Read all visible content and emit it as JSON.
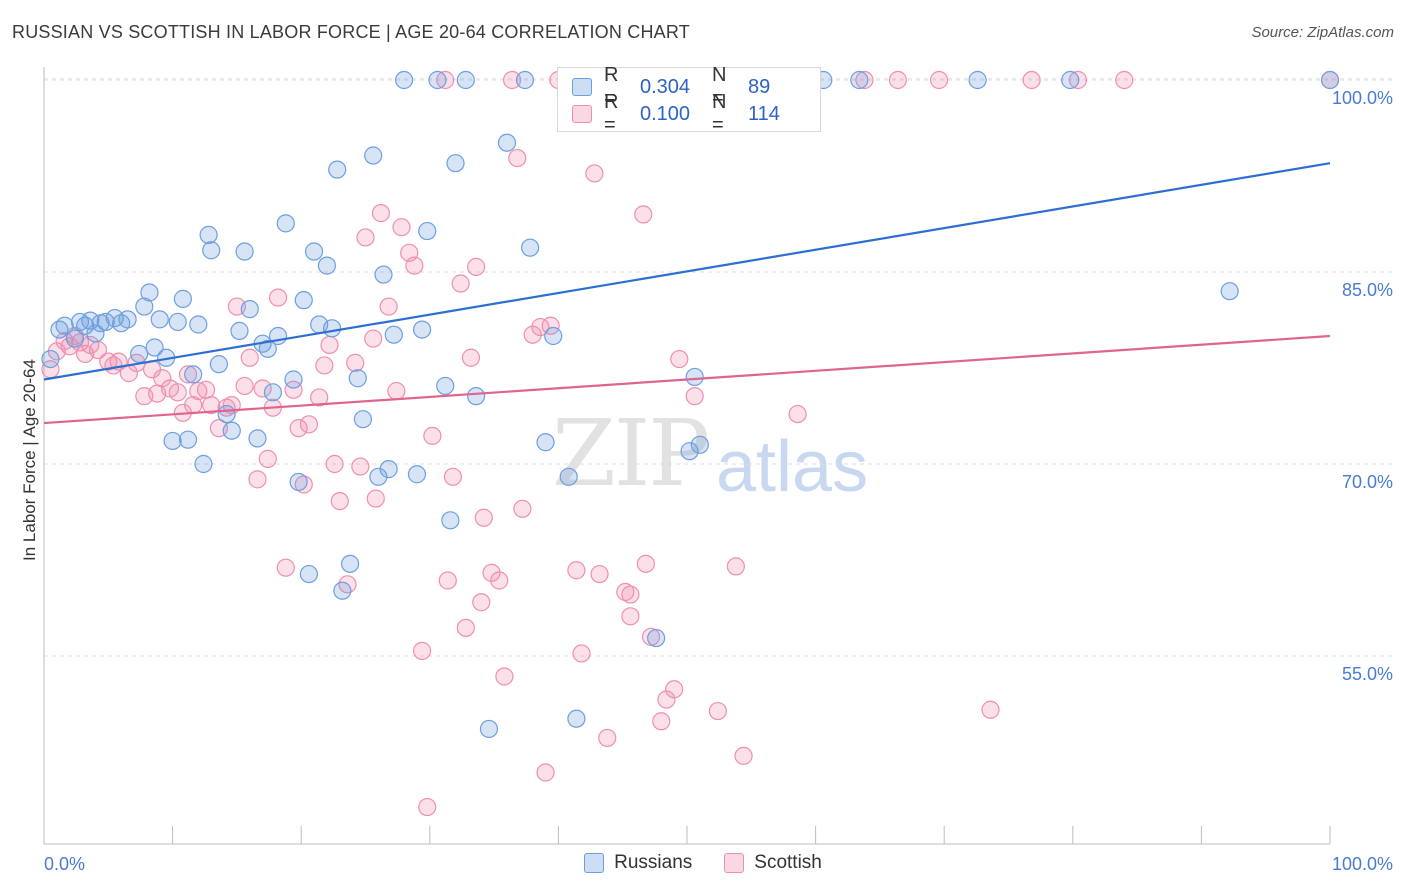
{
  "title": "RUSSIAN VS SCOTTISH IN LABOR FORCE | AGE 20-64 CORRELATION CHART",
  "source": "Source: ZipAtlas.com",
  "watermark": {
    "zip": "ZIP",
    "atlas": "atlas"
  },
  "colors": {
    "russians": "#6d9fe0",
    "scottish": "#ef8fb0",
    "russians_line": "#2c6fd1",
    "scottish_line": "#e0648f",
    "tick_text": "#4a7bd0"
  },
  "legend_top": {
    "rows": [
      {
        "r_label": "R =",
        "r_value": "0.304",
        "n_label": "N =",
        "n_value": "89"
      },
      {
        "r_label": "R =",
        "r_value": "0.100",
        "n_label": "N =",
        "n_value": "114"
      }
    ]
  },
  "legend_bottom": {
    "items": [
      "Russians",
      "Scottish"
    ]
  },
  "chart_data": {
    "type": "scatter",
    "title": "RUSSIAN VS SCOTTISH IN LABOR FORCE | AGE 20-64 CORRELATION CHART",
    "xlabel": "",
    "ylabel": "In Labor Force | Age 20-64",
    "xlim": [
      0,
      100
    ],
    "ylim": [
      40,
      102
    ],
    "x_tick_labels": [
      "0.0%",
      "100.0%"
    ],
    "y_ticks": [
      55,
      70,
      85,
      100
    ],
    "y_tick_labels": [
      "55.0%",
      "70.0%",
      "85.0%",
      "100.0%"
    ],
    "grid": true,
    "legend_position": "bottom",
    "series": [
      {
        "name": "Russians",
        "r": 0.304,
        "n": 89,
        "trend": {
          "x": [
            0,
            100
          ],
          "y": [
            76.6,
            93.5
          ]
        },
        "points": [
          [
            0.5,
            78.2
          ],
          [
            1.2,
            80.5
          ],
          [
            1.6,
            80.8
          ],
          [
            2.4,
            79.8
          ],
          [
            2.8,
            81.1
          ],
          [
            3.2,
            80.8
          ],
          [
            3.6,
            81.2
          ],
          [
            4.0,
            80.2
          ],
          [
            4.4,
            81.0
          ],
          [
            4.8,
            81.1
          ],
          [
            5.5,
            81.4
          ],
          [
            6.0,
            81.0
          ],
          [
            6.5,
            81.3
          ],
          [
            7.4,
            78.6
          ],
          [
            7.8,
            82.3
          ],
          [
            8.2,
            83.4
          ],
          [
            8.6,
            79.1
          ],
          [
            9.0,
            81.3
          ],
          [
            9.5,
            78.3
          ],
          [
            10.0,
            71.8
          ],
          [
            10.4,
            81.1
          ],
          [
            10.8,
            82.9
          ],
          [
            11.2,
            71.9
          ],
          [
            11.6,
            77.0
          ],
          [
            12.0,
            80.9
          ],
          [
            12.4,
            70.0
          ],
          [
            12.8,
            87.9
          ],
          [
            13.0,
            86.7
          ],
          [
            13.6,
            77.8
          ],
          [
            14.2,
            73.9
          ],
          [
            14.6,
            72.6
          ],
          [
            15.2,
            80.4
          ],
          [
            15.6,
            86.6
          ],
          [
            16.0,
            82.1
          ],
          [
            16.6,
            72.0
          ],
          [
            17.0,
            79.4
          ],
          [
            17.4,
            79.0
          ],
          [
            17.8,
            75.6
          ],
          [
            18.2,
            80.0
          ],
          [
            18.8,
            88.8
          ],
          [
            19.4,
            76.6
          ],
          [
            19.8,
            68.6
          ],
          [
            20.2,
            82.8
          ],
          [
            20.6,
            61.4
          ],
          [
            21.0,
            86.6
          ],
          [
            21.4,
            80.9
          ],
          [
            22.0,
            85.5
          ],
          [
            22.4,
            80.6
          ],
          [
            22.8,
            93.0
          ],
          [
            23.2,
            60.1
          ],
          [
            23.8,
            62.2
          ],
          [
            24.4,
            76.7
          ],
          [
            24.8,
            73.5
          ],
          [
            25.6,
            94.1
          ],
          [
            26.0,
            69.0
          ],
          [
            26.4,
            84.8
          ],
          [
            26.8,
            69.6
          ],
          [
            27.2,
            80.1
          ],
          [
            28.0,
            100.0
          ],
          [
            29.0,
            69.2
          ],
          [
            29.4,
            80.5
          ],
          [
            29.8,
            88.2
          ],
          [
            30.6,
            100.0
          ],
          [
            31.2,
            76.1
          ],
          [
            31.6,
            65.6
          ],
          [
            32.0,
            93.5
          ],
          [
            32.8,
            100.0
          ],
          [
            33.6,
            75.3
          ],
          [
            34.6,
            49.3
          ],
          [
            36.0,
            95.1
          ],
          [
            37.4,
            100.0
          ],
          [
            37.8,
            86.9
          ],
          [
            39.0,
            71.7
          ],
          [
            39.6,
            80.0
          ],
          [
            40.8,
            69.0
          ],
          [
            41.4,
            50.1
          ],
          [
            43.0,
            100.0
          ],
          [
            47.6,
            56.4
          ],
          [
            50.2,
            71.0
          ],
          [
            50.6,
            76.8
          ],
          [
            51.0,
            71.5
          ],
          [
            55.2,
            100.0
          ],
          [
            59.2,
            100.0
          ],
          [
            60.6,
            100.0
          ],
          [
            63.4,
            100.0
          ],
          [
            72.6,
            100.0
          ],
          [
            79.8,
            100.0
          ],
          [
            92.2,
            83.5
          ],
          [
            100.0,
            100.0
          ]
        ]
      },
      {
        "name": "Scottish",
        "r": 0.1,
        "n": 114,
        "trend": {
          "x": [
            0,
            100
          ],
          "y": [
            73.2,
            80.0
          ]
        },
        "points": [
          [
            0.5,
            77.4
          ],
          [
            1.0,
            78.8
          ],
          [
            1.6,
            79.6
          ],
          [
            2.0,
            79.2
          ],
          [
            2.4,
            80.0
          ],
          [
            2.8,
            79.5
          ],
          [
            3.2,
            78.6
          ],
          [
            3.6,
            79.3
          ],
          [
            4.2,
            78.9
          ],
          [
            5.0,
            78.0
          ],
          [
            5.4,
            77.7
          ],
          [
            5.8,
            78.0
          ],
          [
            6.6,
            77.1
          ],
          [
            7.2,
            77.9
          ],
          [
            7.8,
            75.3
          ],
          [
            8.4,
            77.4
          ],
          [
            8.8,
            75.5
          ],
          [
            9.2,
            76.7
          ],
          [
            9.8,
            75.9
          ],
          [
            10.4,
            75.6
          ],
          [
            10.8,
            74.0
          ],
          [
            11.2,
            77.0
          ],
          [
            11.6,
            74.6
          ],
          [
            12.0,
            75.7
          ],
          [
            12.6,
            75.8
          ],
          [
            13.0,
            74.6
          ],
          [
            13.6,
            72.8
          ],
          [
            14.2,
            74.4
          ],
          [
            14.6,
            74.6
          ],
          [
            15.0,
            82.3
          ],
          [
            15.6,
            76.1
          ],
          [
            16.0,
            78.3
          ],
          [
            16.6,
            68.8
          ],
          [
            17.0,
            75.9
          ],
          [
            17.4,
            70.4
          ],
          [
            17.8,
            74.4
          ],
          [
            18.2,
            83.0
          ],
          [
            18.8,
            61.9
          ],
          [
            19.4,
            75.8
          ],
          [
            19.8,
            72.8
          ],
          [
            20.2,
            68.4
          ],
          [
            20.6,
            73.1
          ],
          [
            21.4,
            75.2
          ],
          [
            21.8,
            77.7
          ],
          [
            22.2,
            79.3
          ],
          [
            22.6,
            70.0
          ],
          [
            23.0,
            67.1
          ],
          [
            23.6,
            60.6
          ],
          [
            24.2,
            77.9
          ],
          [
            24.6,
            69.8
          ],
          [
            25.0,
            87.7
          ],
          [
            25.6,
            79.8
          ],
          [
            25.8,
            67.3
          ],
          [
            26.2,
            89.6
          ],
          [
            26.8,
            82.3
          ],
          [
            27.4,
            75.7
          ],
          [
            27.8,
            88.5
          ],
          [
            28.4,
            86.5
          ],
          [
            28.8,
            85.5
          ],
          [
            29.4,
            55.4
          ],
          [
            29.8,
            43.2
          ],
          [
            30.2,
            72.2
          ],
          [
            31.2,
            100.0
          ],
          [
            31.4,
            60.9
          ],
          [
            31.8,
            69.0
          ],
          [
            32.4,
            84.1
          ],
          [
            32.8,
            57.2
          ],
          [
            33.2,
            78.3
          ],
          [
            33.6,
            85.4
          ],
          [
            34.2,
            65.8
          ],
          [
            34.8,
            61.5
          ],
          [
            35.4,
            60.9
          ],
          [
            35.8,
            53.4
          ],
          [
            36.4,
            100.0
          ],
          [
            36.8,
            93.9
          ],
          [
            37.2,
            66.5
          ],
          [
            38.0,
            80.1
          ],
          [
            38.6,
            80.7
          ],
          [
            39.0,
            45.9
          ],
          [
            39.4,
            80.8
          ],
          [
            40.0,
            100.0
          ],
          [
            41.4,
            61.7
          ],
          [
            41.8,
            55.2
          ],
          [
            42.2,
            100.0
          ],
          [
            42.8,
            92.7
          ],
          [
            43.2,
            61.4
          ],
          [
            43.8,
            48.6
          ],
          [
            44.4,
            100.0
          ],
          [
            45.2,
            60.0
          ],
          [
            45.6,
            58.1
          ],
          [
            46.6,
            89.5
          ],
          [
            46.8,
            62.2
          ],
          [
            47.2,
            56.5
          ],
          [
            48.0,
            49.9
          ],
          [
            48.4,
            51.6
          ],
          [
            49.0,
            52.4
          ],
          [
            49.4,
            78.2
          ],
          [
            50.2,
            100.0
          ],
          [
            50.6,
            75.3
          ],
          [
            52.4,
            50.7
          ],
          [
            53.8,
            62.0
          ],
          [
            54.4,
            47.2
          ],
          [
            58.6,
            73.9
          ],
          [
            63.8,
            100.0
          ],
          [
            66.4,
            100.0
          ],
          [
            69.6,
            100.0
          ],
          [
            73.6,
            50.8
          ],
          [
            76.8,
            100.0
          ],
          [
            80.4,
            100.0
          ],
          [
            84.0,
            100.0
          ],
          [
            100.0,
            100.0
          ],
          [
            45.6,
            59.8
          ],
          [
            34.0,
            59.2
          ]
        ]
      }
    ]
  }
}
